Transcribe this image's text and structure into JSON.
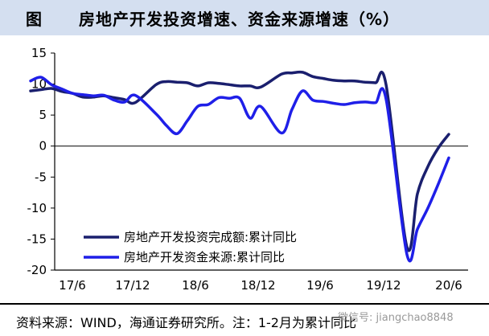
{
  "header": {
    "label": "图",
    "title": "房地产开发投资增速、资金来源增速（%）"
  },
  "footer": {
    "source": "资料来源：WIND，海通证券研究所。注：1-2月为累计同比",
    "watermark": "微信号: jiangchao8848"
  },
  "colors": {
    "series1": "#1a1f6e",
    "series2": "#1f1fe8",
    "header_bg": "#d4dff0"
  },
  "chart_data": {
    "type": "line",
    "title": "",
    "xlabel": "",
    "ylabel": "",
    "ylim": [
      -20,
      15
    ],
    "yticks": [
      15,
      10,
      5,
      0,
      -5,
      -10,
      -15,
      -20
    ],
    "xticks": [
      "17/6",
      "17/12",
      "18/6",
      "18/12",
      "19/6",
      "19/12",
      "20/6"
    ],
    "legend_position": "bottom-left",
    "grid": false,
    "x": [
      "2017-02",
      "2017-03",
      "2017-04",
      "2017-05",
      "2017-06",
      "2017-07",
      "2017-08",
      "2017-09",
      "2017-10",
      "2017-11",
      "2017-12",
      "2018-02",
      "2018-03",
      "2018-04",
      "2018-05",
      "2018-06",
      "2018-07",
      "2018-08",
      "2018-09",
      "2018-10",
      "2018-11",
      "2018-12",
      "2019-02",
      "2019-03",
      "2019-04",
      "2019-05",
      "2019-06",
      "2019-07",
      "2019-08",
      "2019-09",
      "2019-10",
      "2019-11",
      "2019-12",
      "2020-02",
      "2020-03",
      "2020-04",
      "2020-05",
      "2020-06"
    ],
    "series": [
      {
        "name": "房地产开发投资完成额:累计同比",
        "values": [
          8.9,
          9.1,
          9.3,
          8.8,
          8.5,
          7.9,
          7.9,
          8.1,
          7.8,
          7.5,
          7.0,
          9.9,
          10.4,
          10.3,
          10.2,
          9.7,
          10.2,
          10.1,
          9.9,
          9.7,
          9.7,
          9.5,
          11.6,
          11.8,
          11.9,
          11.2,
          10.9,
          10.6,
          10.5,
          10.5,
          10.3,
          10.2,
          9.9,
          -16.3,
          -7.7,
          -3.3,
          -0.3,
          1.9
        ]
      },
      {
        "name": "房地产开发资金来源:累计同比",
        "values": [
          10.5,
          11.1,
          9.9,
          9.2,
          8.5,
          8.3,
          8.1,
          8.2,
          7.4,
          7.1,
          8.2,
          5.2,
          3.3,
          2.0,
          4.1,
          6.4,
          6.7,
          7.8,
          7.7,
          7.7,
          4.5,
          6.4,
          2.1,
          5.9,
          8.9,
          7.4,
          7.2,
          6.9,
          6.7,
          7.0,
          7.1,
          7.0,
          7.6,
          -17.5,
          -13.4,
          -10.0,
          -6.1,
          -1.9
        ]
      }
    ]
  }
}
